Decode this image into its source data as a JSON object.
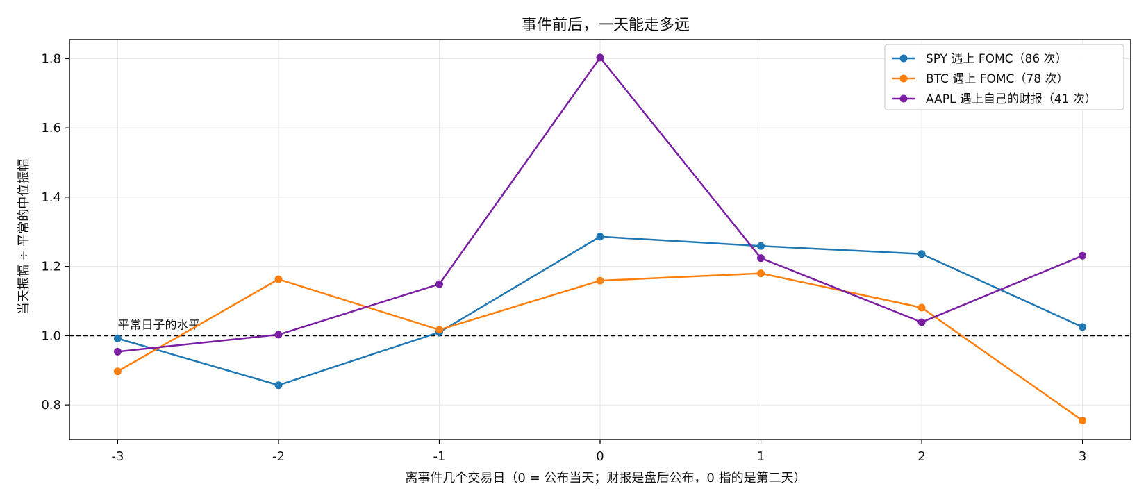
{
  "chart_data": {
    "type": "line",
    "title": "事件前后，一天能走多远",
    "xlabel": "离事件几个交易日（0 = 公布当天；财报是盘后公布，0 指的是第二天）",
    "ylabel": "当天振幅 ÷ 平常的中位振幅",
    "x": [
      -3,
      -2,
      -1,
      0,
      1,
      2,
      3
    ],
    "x_tick_labels": [
      "-3",
      "-2",
      "-1",
      "0",
      "1",
      "2",
      "3"
    ],
    "y_ticks": [
      0.8,
      1.0,
      1.2,
      1.4,
      1.6,
      1.8
    ],
    "y_tick_labels": [
      "0.8",
      "1.0",
      "1.2",
      "1.4",
      "1.6",
      "1.8"
    ],
    "xlim": [
      -3.3,
      3.3
    ],
    "ylim": [
      0.7,
      1.855
    ],
    "grid": true,
    "legend_position": "top-right",
    "series": [
      {
        "name": "SPY 遇上 FOMC（86 次）",
        "color": "#1f77b4",
        "values": [
          0.992,
          0.857,
          1.01,
          1.286,
          1.259,
          1.236,
          1.025
        ]
      },
      {
        "name": "BTC 遇上 FOMC（78 次）",
        "color": "#ff7f0e",
        "values": [
          0.897,
          1.163,
          1.017,
          1.159,
          1.18,
          1.081,
          0.755
        ]
      },
      {
        "name": "AAPL 遇上自己的财报（41 次）",
        "color": "#7b1fa2",
        "values": [
          0.954,
          1.003,
          1.149,
          1.803,
          1.224,
          1.039,
          1.231
        ]
      }
    ],
    "reference_line": {
      "y": 1.0,
      "style": "dashed",
      "color": "#000000",
      "label": "平常日子的水平"
    }
  }
}
